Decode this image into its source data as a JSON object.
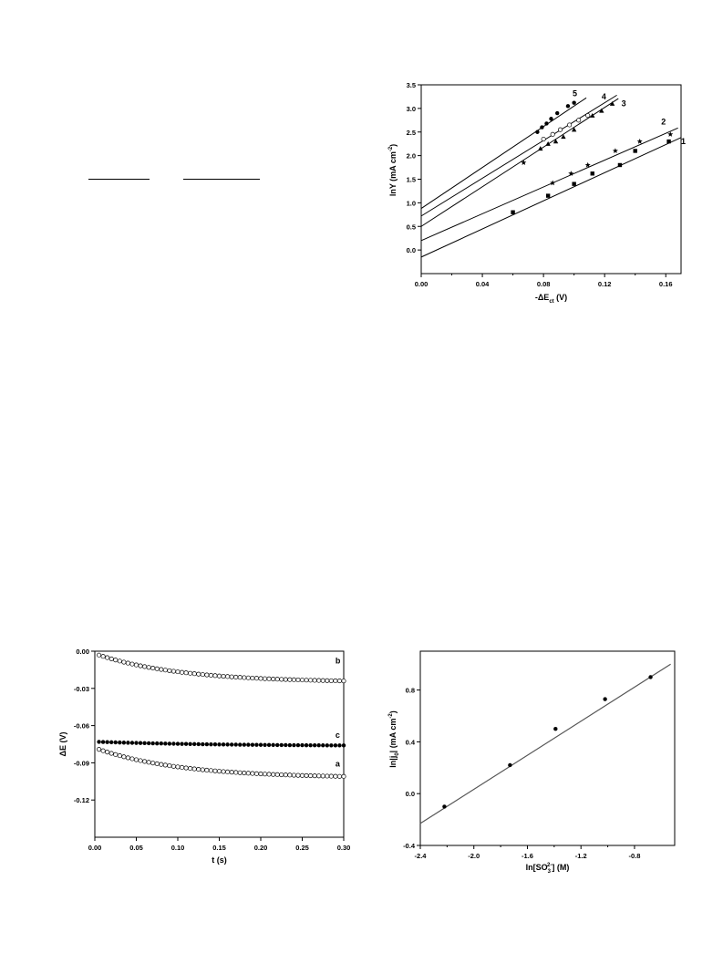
{
  "chart_data": [
    {
      "type": "scatter",
      "title": "",
      "xlabel": "-ΔE",
      "xlabel_sub": "ct",
      "xlabel_unit": " (V)",
      "ylabel": "lnY (mA cm",
      "ylabel_sup": "-2",
      "ylabel_end": ")",
      "xlim": [
        0.0,
        0.17
      ],
      "ylim": [
        -0.5,
        3.5
      ],
      "x_ticks": [
        0.0,
        0.04,
        0.08,
        0.12,
        0.16
      ],
      "x_tick_labels": [
        "0.00",
        "0.04",
        "0.08",
        "0.12",
        "0.16"
      ],
      "y_ticks": [
        0.0,
        0.5,
        1.0,
        1.5,
        2.0,
        2.5,
        3.0,
        3.5
      ],
      "y_tick_labels": [
        "0.0",
        "0.5",
        "1.0",
        "1.5",
        "2.0",
        "2.5",
        "3.0",
        "3.5"
      ],
      "series": [
        {
          "name": "1",
          "marker": "square",
          "fit": [
            -0.15,
            14.9
          ],
          "x": [
            0.06,
            0.083,
            0.1,
            0.112,
            0.13,
            0.14,
            0.162
          ],
          "y": [
            0.8,
            1.15,
            1.4,
            1.62,
            1.8,
            2.1,
            2.3
          ]
        },
        {
          "name": "2",
          "marker": "star",
          "fit": [
            0.2,
            14.2
          ],
          "x": [
            0.067,
            0.086,
            0.098,
            0.109,
            0.127,
            0.143,
            0.163
          ],
          "y": [
            1.85,
            1.42,
            1.62,
            1.8,
            2.1,
            2.3,
            2.45
          ]
        },
        {
          "name": "3",
          "marker": "triangle",
          "fit": [
            0.5,
            21.0
          ],
          "x": [
            0.078,
            0.083,
            0.088,
            0.093,
            0.1,
            0.112,
            0.118,
            0.125
          ],
          "y": [
            2.15,
            2.25,
            2.3,
            2.4,
            2.55,
            2.85,
            2.95,
            3.1
          ]
        },
        {
          "name": "4",
          "marker": "circle-open",
          "fit": [
            0.72,
            20.0
          ],
          "x": [
            0.08,
            0.086,
            0.091,
            0.097,
            0.103,
            0.109
          ],
          "y": [
            2.35,
            2.45,
            2.55,
            2.65,
            2.75,
            2.85
          ]
        },
        {
          "name": "5",
          "marker": "circle",
          "fit": [
            0.88,
            21.7
          ],
          "x": [
            0.076,
            0.079,
            0.082,
            0.085,
            0.089,
            0.096,
            0.1
          ],
          "y": [
            2.5,
            2.6,
            2.68,
            2.78,
            2.9,
            3.05,
            3.12
          ]
        }
      ]
    },
    {
      "type": "scatter",
      "title": "",
      "xlabel": "t (s)",
      "ylabel": "ΔE (V)",
      "xlim": [
        0.0,
        0.3
      ],
      "ylim": [
        -0.15,
        0.0
      ],
      "x_ticks": [
        0.0,
        0.05,
        0.1,
        0.15,
        0.2,
        0.25,
        0.3
      ],
      "x_tick_labels": [
        "0.00",
        "0.05",
        "0.10",
        "0.15",
        "0.20",
        "0.25",
        "0.30"
      ],
      "y_ticks": [
        0.0,
        -0.03,
        -0.06,
        -0.09,
        -0.12
      ],
      "y_tick_labels": [
        "0.00",
        "-0.03",
        "-0.06",
        "-0.09",
        "-0.12"
      ],
      "series": [
        {
          "name": "b",
          "marker": "circle-open",
          "curve": {
            "start": -0.002,
            "end": -0.024,
            "tau": 0.1
          }
        },
        {
          "name": "c",
          "marker": "circle",
          "curve": {
            "start": -0.073,
            "end": -0.076,
            "tau": 0.15
          }
        },
        {
          "name": "a",
          "marker": "circle-open",
          "curve": {
            "start": -0.078,
            "end": -0.101,
            "tau": 0.1
          }
        }
      ]
    },
    {
      "type": "scatter",
      "title": "",
      "xlabel": "ln[SO",
      "xlabel_sub": "3",
      "xlabel_sup": "2-",
      "xlabel_end": "] (M)",
      "ylabel": "ln|j",
      "ylabel_sub": "0",
      "ylabel_mid": "| (mA cm",
      "ylabel_sup": "-2",
      "ylabel_end": ")",
      "xlim": [
        -2.4,
        -0.5
      ],
      "ylim": [
        -0.4,
        1.1
      ],
      "x_ticks": [
        -2.4,
        -2.0,
        -1.6,
        -1.2,
        -0.8
      ],
      "x_tick_labels": [
        "-2.4",
        "-2.0",
        "-1.6",
        "-1.2",
        "-0.8"
      ],
      "y_ticks": [
        -0.4,
        0.0,
        0.4,
        0.8
      ],
      "y_tick_labels": [
        "-0.4",
        "0.0",
        "0.4",
        "0.8"
      ],
      "fit": {
        "x": [
          -2.4,
          -0.53
        ],
        "y": [
          -0.23,
          1.0
        ]
      },
      "series": [
        {
          "name": "",
          "marker": "circle",
          "x": [
            -2.22,
            -1.73,
            -1.39,
            -1.02,
            -0.68
          ],
          "y": [
            -0.1,
            0.22,
            0.5,
            0.73,
            0.9
          ]
        }
      ]
    }
  ]
}
